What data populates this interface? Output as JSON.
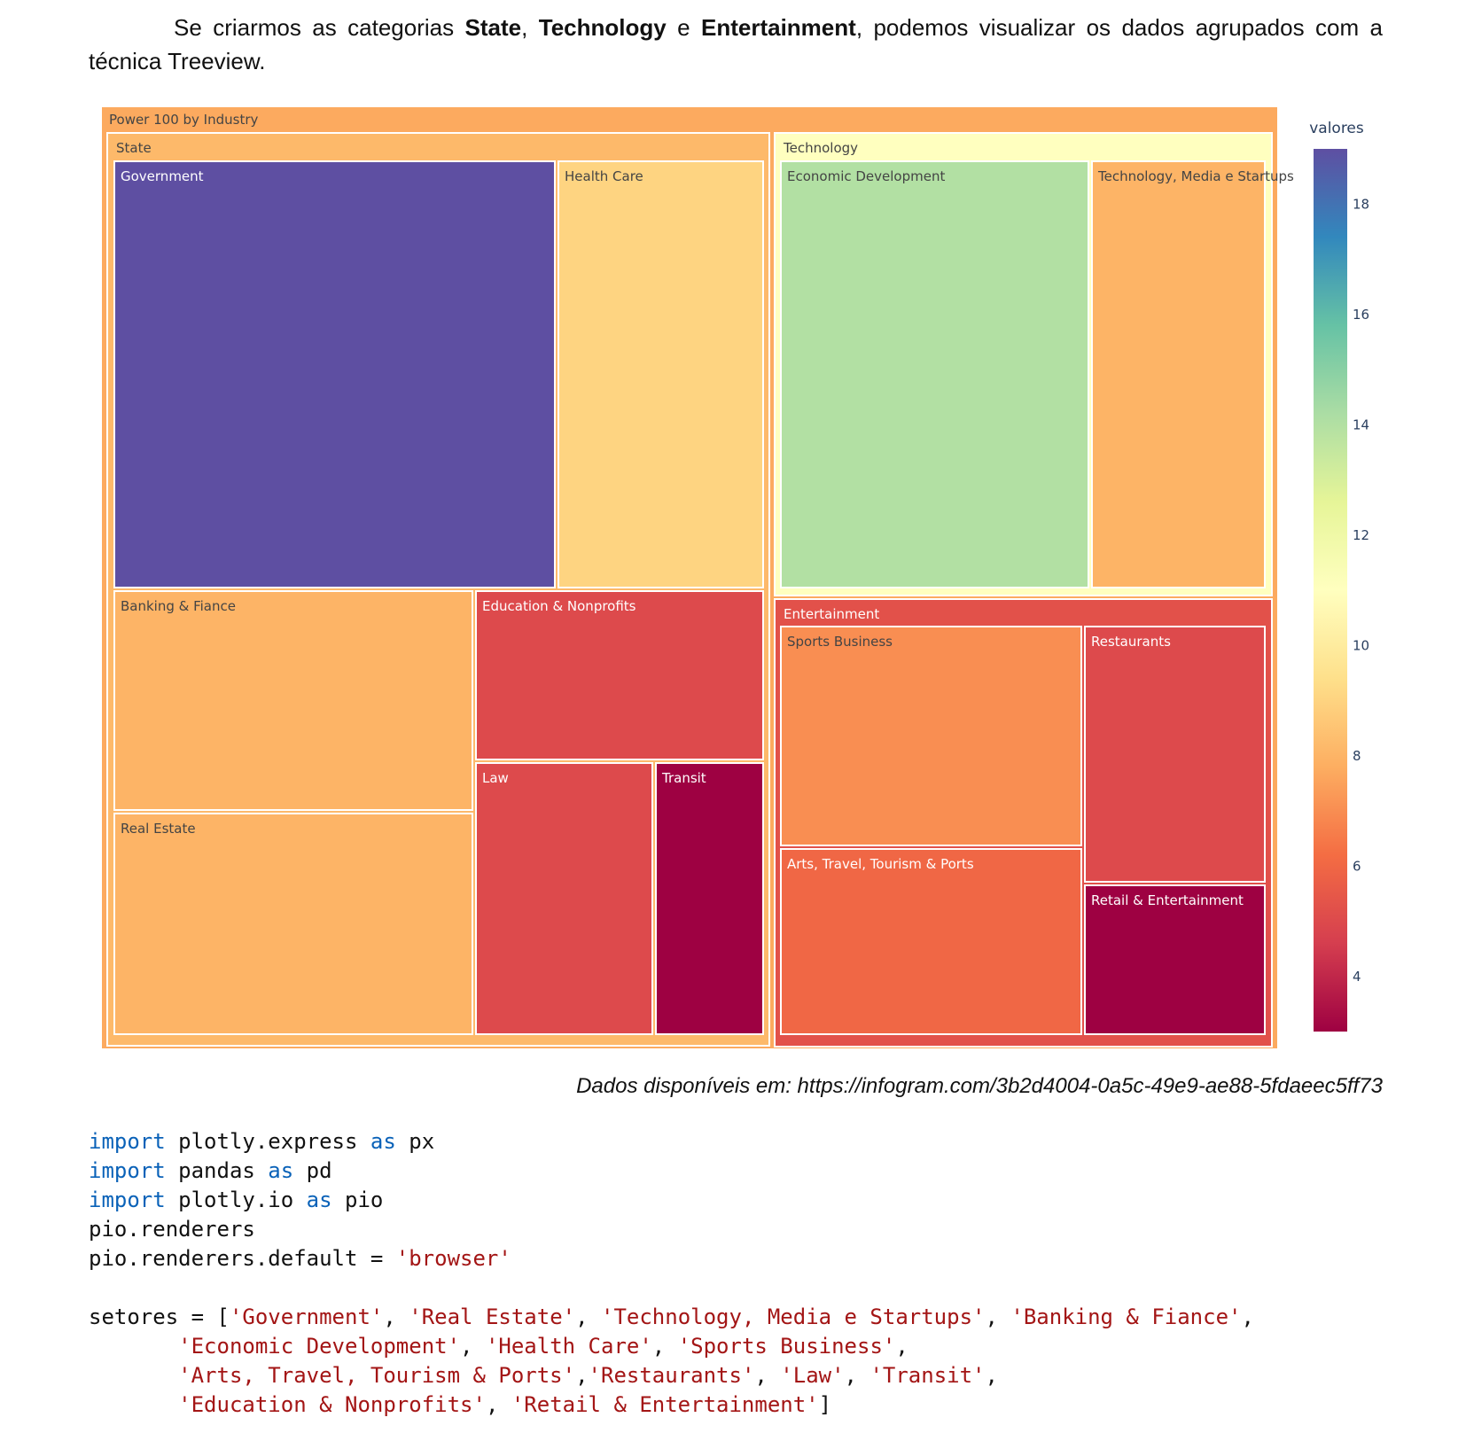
{
  "intro": {
    "text_1": "Se criarmos as categorias ",
    "bold_state": "State",
    "comma": ", ",
    "bold_technology": "Technology",
    "text_e": " e ",
    "bold_entertainment": "Entertainment",
    "text_2": ", podemos visualizar os dados agrupados com a técnica Treeview."
  },
  "chart_data": {
    "type": "treemap",
    "title": "",
    "root": "Power 100 by Industry",
    "colorbar_title": "valores",
    "colorbar_ticks": [
      4,
      6,
      8,
      10,
      12,
      14,
      16,
      18
    ],
    "color_range": [
      3,
      19
    ],
    "colorscale": "Spectral",
    "groups": [
      {
        "name": "State",
        "children": [
          {
            "label": "Government",
            "value": 19
          },
          {
            "label": "Health Care",
            "value": 9
          },
          {
            "label": "Banking & Fiance",
            "value": 8
          },
          {
            "label": "Education & Nonprofits",
            "value": 5
          },
          {
            "label": "Real Estate",
            "value": 8
          },
          {
            "label": "Law",
            "value": 5
          },
          {
            "label": "Transit",
            "value": 3
          }
        ]
      },
      {
        "name": "Technology",
        "children": [
          {
            "label": "Economic Development",
            "value": 14
          },
          {
            "label": "Technology, Media e Startups",
            "value": 8
          }
        ]
      },
      {
        "name": "Entertainment",
        "children": [
          {
            "label": "Sports Business",
            "value": 7
          },
          {
            "label": "Restaurants",
            "value": 5
          },
          {
            "label": "Arts, Travel, Tourism & Ports",
            "value": 6
          },
          {
            "label": "Retail & Entertainment",
            "value": 3
          }
        ]
      }
    ]
  },
  "caption": "Dados disponíveis em: https://infogram.com/3b2d4004-0a5c-49e9-ae88-5fdaeec5ff73",
  "code": {
    "l1_kw": "import",
    "l1_a": " plotly.express ",
    "l1_kw2": "as",
    "l1_b": " px",
    "l2_kw": "import",
    "l2_a": " pandas ",
    "l2_kw2": "as",
    "l2_b": " pd",
    "l3_kw": "import",
    "l3_a": " plotly.io ",
    "l3_kw2": "as",
    "l3_b": " pio",
    "l4": "pio.renderers",
    "l5_a": "pio.renderers.default = ",
    "l5_s": "'browser'",
    "l7_a": "setores = [",
    "l7_s1": "'Government'",
    "l7_s2": "'Real Estate'",
    "l7_s3": "'Technology, Media e Startups'",
    "l7_s4": "'Banking & Fiance'",
    "l8_s1": "'Economic Development'",
    "l8_s2": "'Health Care'",
    "l8_s3": "'Sports Business'",
    "l9_s1": "'Arts, Travel, Tourism & Ports'",
    "l9_s2": "'Restaurants'",
    "l9_s3": "'Law'",
    "l9_s4": "'Transit'",
    "l10_s1": "'Education & Nonprofits'",
    "l10_s2": "'Retail & Entertainment'",
    "sep": ", ",
    "sepnospace": ",",
    "close": "]"
  }
}
